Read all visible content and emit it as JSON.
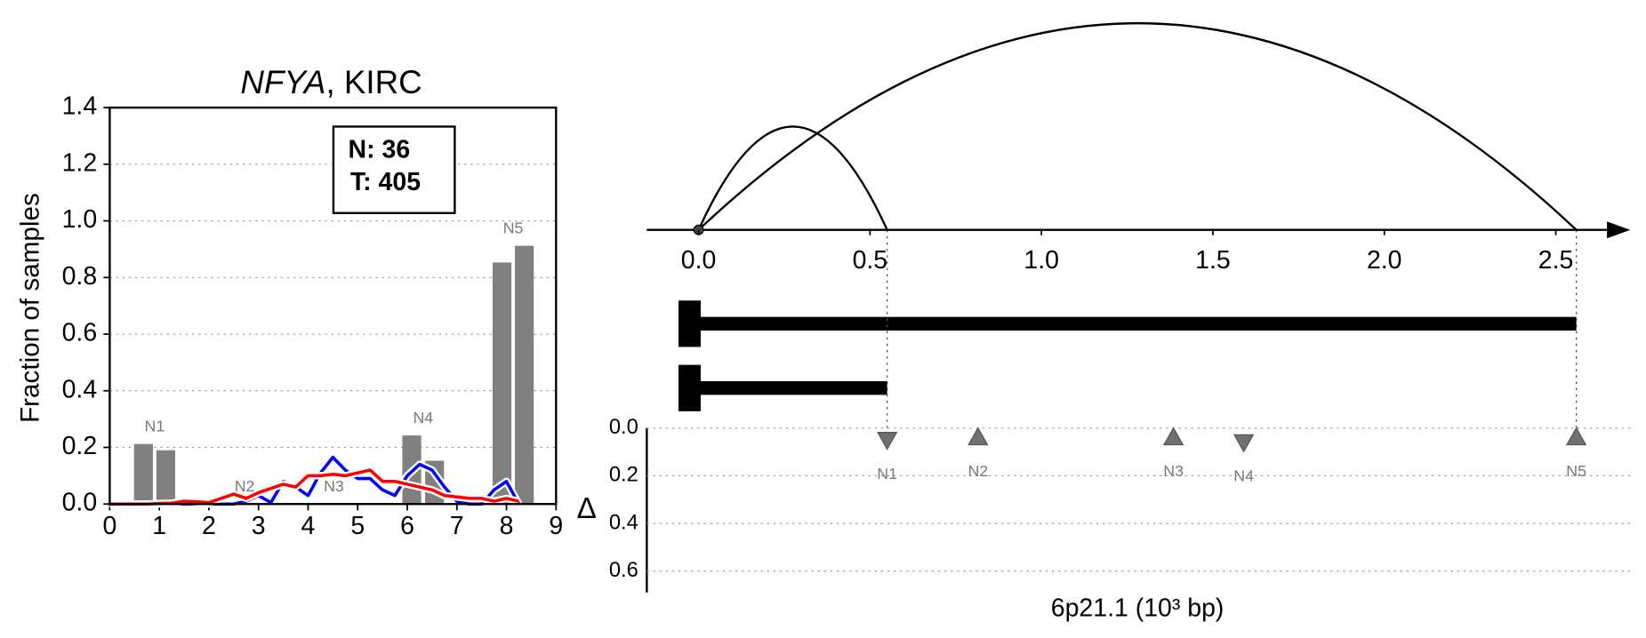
{
  "chart_data": [
    {
      "type": "bar",
      "title": [
        "NFYA",
        ", KIRC"
      ],
      "ylabel": "Fraction of samples",
      "annotations": [
        "N: 36",
        "T: 405"
      ],
      "xlim": [
        0,
        9
      ],
      "xticks": [
        0,
        1,
        2,
        3,
        4,
        5,
        6,
        7,
        8,
        9
      ],
      "ylim": [
        0,
        1.4
      ],
      "yticks": [
        {
          "value": 0,
          "label": "0.0"
        },
        {
          "value": 0.2,
          "label": "0.2"
        },
        {
          "value": 0.4,
          "label": "0.4"
        },
        {
          "value": 0.6,
          "label": "0.6"
        },
        {
          "value": 0.8,
          "label": "0.8"
        },
        {
          "value": 1.0,
          "label": "1.0"
        },
        {
          "value": 1.2,
          "label": "1.2"
        },
        {
          "value": 1.4,
          "label": "1.4"
        }
      ],
      "grid": true,
      "bars": {
        "color": "#808080",
        "x": [
          0.68,
          1.13,
          6.09,
          6.55,
          7.91,
          8.36
        ],
        "values": [
          0.212,
          0.19,
          0.242,
          0.153,
          0.853,
          0.912
        ]
      },
      "peak_labels": [
        "N1",
        "N2",
        "N3",
        "N4",
        "N5"
      ],
      "x": [
        0,
        0.25,
        0.5,
        0.75,
        1,
        1.25,
        1.5,
        1.75,
        2,
        2.25,
        2.5,
        2.75,
        3,
        3.25,
        3.5,
        3.75,
        4,
        4.25,
        4.5,
        4.75,
        5,
        5.25,
        5.5,
        5.75,
        6,
        6.25,
        6.5,
        6.75,
        7,
        7.25,
        7.5,
        7.75,
        8,
        8.25
      ],
      "series": [
        {
          "color": "#0000ff",
          "values": [
            0,
            0,
            0,
            0,
            0,
            0,
            0,
            0,
            0,
            0,
            0,
            0.01,
            0.03,
            0.005,
            0.08,
            0.06,
            0.03,
            0.11,
            0.165,
            0.12,
            0.09,
            0.09,
            0.05,
            0.03,
            0.1,
            0.14,
            0.12,
            0.06,
            0.01,
            0,
            0,
            0.05,
            0.08,
            0
          ]
        },
        {
          "color": "#ff0000",
          "values": [
            0,
            0,
            0,
            0,
            0.002,
            0.003,
            0.01,
            0.008,
            0.005,
            0.02,
            0.035,
            0.02,
            0.04,
            0.055,
            0.07,
            0.06,
            0.1,
            0.1,
            0.105,
            0.1,
            0.11,
            0.12,
            0.08,
            0.08,
            0.07,
            0.06,
            0.05,
            0.03,
            0.025,
            0.02,
            0.02,
            0.01,
            0.02,
            0.01
          ]
        }
      ]
    },
    {
      "type": "genome",
      "xlabel": "6p21.1 (10³ bp)",
      "xlim": [
        -0.151,
        2.717
      ],
      "xticks": [
        {
          "value": 0,
          "label": "0.0"
        },
        {
          "value": 0.5,
          "label": "0.5"
        },
        {
          "value": 1.0,
          "label": "1.0"
        },
        {
          "value": 1.5,
          "label": "1.5"
        },
        {
          "value": 2.0,
          "label": "2.0"
        },
        {
          "value": 2.5,
          "label": "2.5"
        }
      ],
      "isoforms": [
        {
          "start": 0,
          "end": 2.56
        },
        {
          "start": 0,
          "end": 0.55
        }
      ],
      "delta": {
        "ylabel": "Δ",
        "ylim": [
          0,
          0.69
        ],
        "yticks": [
          {
            "value": 0,
            "label": "0.0"
          },
          {
            "value": 0.2,
            "label": "0.2"
          },
          {
            "value": 0.4,
            "label": "0.4"
          },
          {
            "value": 0.6,
            "label": "0.6"
          }
        ],
        "grid": true,
        "color": "#707070",
        "positions": [
          0.55,
          0.815,
          1.385,
          1.59,
          2.56
        ],
        "values": [
          0.04,
          0.03,
          0.03,
          0.05,
          0.03
        ],
        "markers": [
          "v",
          "^",
          "^",
          "v",
          "^"
        ],
        "labels": [
          "N1",
          "N2",
          "N3",
          "N4",
          "N5"
        ]
      }
    }
  ]
}
